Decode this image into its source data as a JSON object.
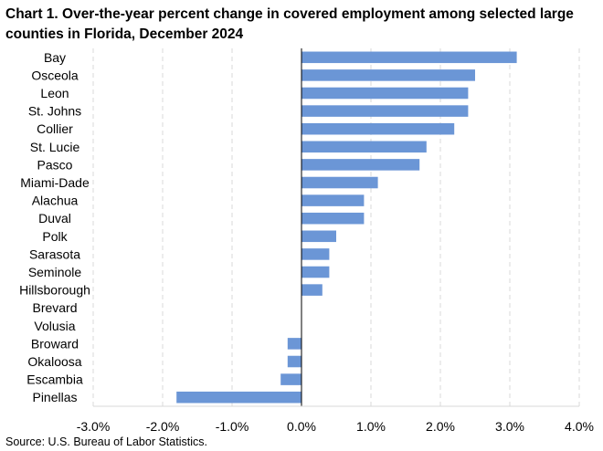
{
  "chart_data": {
    "type": "bar",
    "orientation": "horizontal",
    "title": "Chart 1. Over-the-year percent change in covered employment among selected large counties in Florida, December 2024",
    "categories": [
      "Bay",
      "Osceola",
      "Leon",
      "St. Johns",
      "Collier",
      "St. Lucie",
      "Pasco",
      "Miami-Dade",
      "Alachua",
      "Duval",
      "Polk",
      "Sarasota",
      "Seminole",
      "Hillsborough",
      "Brevard",
      "Volusia",
      "Broward",
      "Okaloosa",
      "Escambia",
      "Pinellas"
    ],
    "values": [
      3.1,
      2.5,
      2.4,
      2.4,
      2.2,
      1.8,
      1.7,
      1.1,
      0.9,
      0.9,
      0.5,
      0.4,
      0.4,
      0.3,
      0.0,
      0.0,
      -0.2,
      -0.2,
      -0.3,
      -1.8
    ],
    "xlim": [
      -3.0,
      4.0
    ],
    "xticks": [
      -3.0,
      -2.0,
      -1.0,
      0.0,
      1.0,
      2.0,
      3.0,
      4.0
    ],
    "xtick_labels": [
      "-3.0%",
      "-2.0%",
      "-1.0%",
      "0.0%",
      "1.0%",
      "2.0%",
      "3.0%",
      "4.0%"
    ],
    "xlabel": "",
    "ylabel": "",
    "grid": "vertical-dashed",
    "bar_color": "#6b96d6",
    "grid_color": "#d9d9d9",
    "axis_color": "#000000"
  },
  "source": "Source: U.S. Bureau of Labor Statistics."
}
